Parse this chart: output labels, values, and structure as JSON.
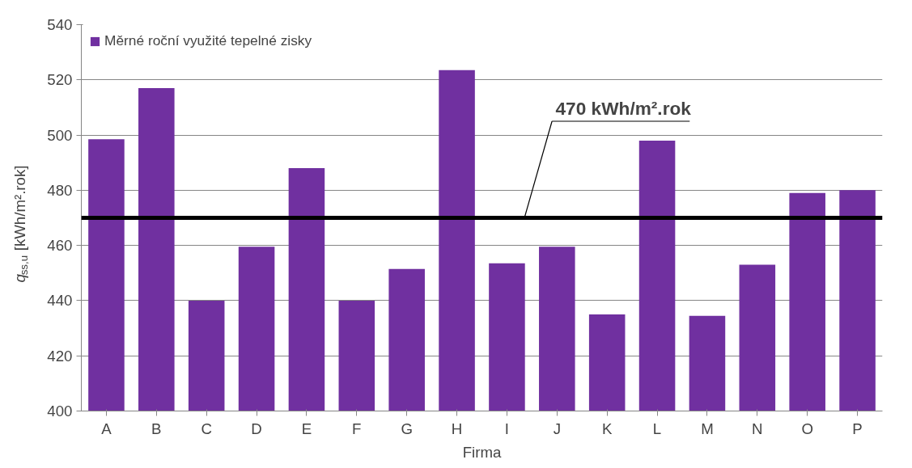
{
  "chart_data": {
    "type": "bar",
    "xlabel": "Firma",
    "ylabel": "q$_{ss,u}$ [kWh/m².rok]",
    "categories": [
      "A",
      "B",
      "C",
      "D",
      "E",
      "F",
      "G",
      "H",
      "I",
      "J",
      "K",
      "L",
      "M",
      "N",
      "O",
      "P"
    ],
    "series": [
      {
        "name": "Měrné roční využité tepelné zisky",
        "color": "#7030a0",
        "values": [
          498.5,
          517,
          440,
          459.5,
          488,
          440,
          451.5,
          523.5,
          453.5,
          459.5,
          435,
          498,
          434.5,
          453,
          479,
          480
        ]
      }
    ],
    "ylim": [
      400,
      540
    ],
    "yticks": [
      400,
      420,
      440,
      460,
      480,
      500,
      520,
      540
    ],
    "ref_lines": [
      {
        "axis": "y",
        "value": 470,
        "label": "470 kWh/m².rok",
        "color": "#000000"
      }
    ],
    "grid": "y",
    "legend": "top left"
  }
}
